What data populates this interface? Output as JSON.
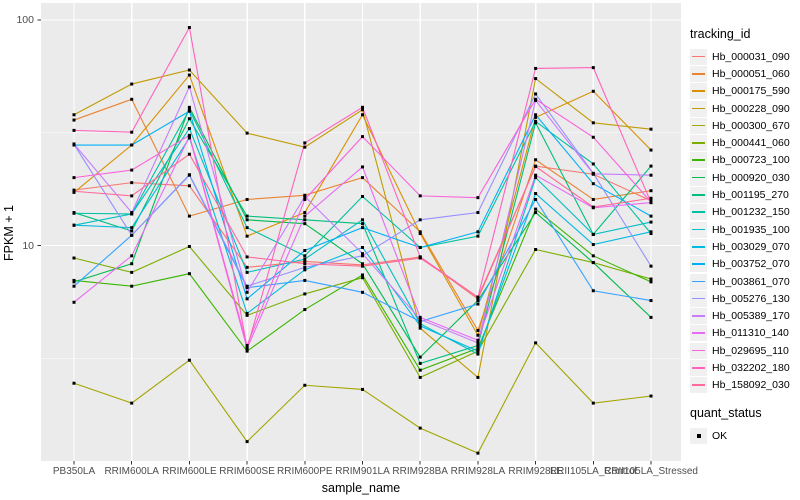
{
  "axes": {
    "x_label": "sample_name",
    "y_label": "FPKM + 1",
    "y_tick_labels": [
      "100",
      "10"
    ]
  },
  "legend": {
    "tracking_title": "tracking_id",
    "quant_title": "quant_status",
    "quant_items": [
      {
        "label": "OK",
        "marker": "black-square"
      }
    ]
  },
  "style": {
    "panel_bg": "#EBEBEB",
    "grid_color": "#FFFFFF",
    "marker_color": "#000000",
    "tick_text_color": "#4D4D4D",
    "tick_mark_color": "#333333"
  },
  "chart_data": {
    "type": "line",
    "x_type": "categorical",
    "title": "",
    "xlabel": "sample_name",
    "ylabel": "FPKM + 1",
    "y_scale": "log10",
    "ylim": [
      1.05,
      120
    ],
    "y_major_ticks": [
      100,
      10
    ],
    "y_major_gridlines": [
      10,
      100
    ],
    "y_minor_gridlines": [
      3.162,
      31.62
    ],
    "grid": true,
    "legend_position": "right",
    "point_marker": "black-square",
    "categories": [
      "PB350LA",
      "RRIM600LA",
      "RRIM600LE",
      "RRIM600SE",
      "RRIM600PE",
      "RRIM901LA",
      "RRIM928BA",
      "RRIM928LA",
      "RRIM928LE",
      "RRII105LA_Control",
      "RRII105LA_Stressed"
    ],
    "series": [
      {
        "name": "Hb_000031_090",
        "color": "#F8766D",
        "values": [
          17.6,
          19.0,
          18.4,
          8.0,
          8.5,
          8.2,
          8.9,
          5.8,
          22.5,
          20.7,
          15.8
        ]
      },
      {
        "name": "Hb_000051_060",
        "color": "#EA8331",
        "values": [
          36.0,
          44.5,
          13.5,
          16.0,
          16.7,
          20.0,
          11.5,
          4.2,
          24.0,
          16.0,
          17.5
        ]
      },
      {
        "name": "Hb_000175_590",
        "color": "#D89000",
        "values": [
          17.2,
          27.9,
          57.0,
          11.0,
          14.0,
          38.0,
          11.3,
          4.0,
          37.0,
          48.3,
          26.5
        ]
      },
      {
        "name": "Hb_000228_090",
        "color": "#C09B00",
        "values": [
          38.0,
          52.0,
          60.0,
          31.5,
          27.3,
          40.0,
          4.3,
          2.6,
          55.0,
          35.0,
          32.8
        ]
      },
      {
        "name": "Hb_000300_670",
        "color": "#A3A500",
        "values": [
          2.45,
          2.0,
          3.1,
          1.35,
          2.4,
          2.3,
          1.55,
          1.2,
          3.7,
          2.0,
          2.15
        ]
      },
      {
        "name": "Hb_000441_060",
        "color": "#7CAE00",
        "values": [
          8.8,
          7.6,
          9.9,
          4.9,
          6.1,
          7.2,
          2.6,
          3.4,
          9.6,
          8.4,
          7.1
        ]
      },
      {
        "name": "Hb_000723_100",
        "color": "#39B600",
        "values": [
          7.0,
          6.6,
          7.5,
          3.4,
          5.2,
          7.4,
          2.8,
          3.5,
          14.5,
          9.0,
          6.9
        ]
      },
      {
        "name": "Hb_000920_030",
        "color": "#00BB4E",
        "values": [
          6.9,
          8.3,
          41.0,
          13.0,
          12.5,
          8.3,
          3.2,
          5.7,
          14.0,
          8.4,
          4.8
        ]
      },
      {
        "name": "Hb_001195_270",
        "color": "#00BF7D",
        "values": [
          14.0,
          11.6,
          36.5,
          13.5,
          13.0,
          12.5,
          3.0,
          3.6,
          35.0,
          11.2,
          22.5
        ]
      },
      {
        "name": "Hb_001232_150",
        "color": "#00C1A3",
        "values": [
          13.9,
          13.8,
          40.0,
          12.0,
          9.0,
          16.5,
          9.8,
          11.0,
          35.5,
          23.0,
          11.3
        ]
      },
      {
        "name": "Hb_001935_100",
        "color": "#00BFC4",
        "values": [
          12.3,
          13.8,
          33.0,
          7.6,
          8.7,
          13.0,
          4.5,
          3.3,
          20.0,
          11.2,
          12.7
        ]
      },
      {
        "name": "Hb_003029_070",
        "color": "#00BAE0",
        "values": [
          12.3,
          12.0,
          30.0,
          5.0,
          7.8,
          9.8,
          4.4,
          3.4,
          17.0,
          10.1,
          11.5
        ]
      },
      {
        "name": "Hb_003752_070",
        "color": "#00B0F6",
        "values": [
          27.9,
          27.9,
          39.4,
          5.8,
          9.5,
          12.0,
          9.8,
          11.5,
          38.0,
          18.8,
          13.5
        ]
      },
      {
        "name": "Hb_003861_070",
        "color": "#35A2FF",
        "values": [
          6.6,
          11.1,
          20.5,
          6.5,
          7.0,
          6.2,
          4.6,
          5.5,
          16.0,
          6.3,
          5.7
        ]
      },
      {
        "name": "Hb_005276_130",
        "color": "#9590FF",
        "values": [
          28.1,
          11.1,
          20.6,
          6.6,
          8.0,
          9.0,
          13.0,
          14.0,
          47.0,
          20.9,
          8.1
        ]
      },
      {
        "name": "Hb_005389_170",
        "color": "#C77CFF",
        "values": [
          28.2,
          14.0,
          50.5,
          6.2,
          16.5,
          9.2,
          4.7,
          3.7,
          44.0,
          20.8,
          20.5
        ]
      },
      {
        "name": "Hb_011310_140",
        "color": "#E76BF3",
        "values": [
          5.6,
          9.0,
          30.5,
          3.5,
          13.5,
          22.3,
          4.8,
          3.8,
          20.5,
          14.7,
          15.5
        ]
      },
      {
        "name": "Hb_029695_110",
        "color": "#FA62DB",
        "values": [
          20.0,
          21.6,
          30.8,
          3.6,
          16.0,
          30.4,
          16.6,
          16.3,
          44.5,
          30.2,
          15.6
        ]
      },
      {
        "name": "Hb_032202_180",
        "color": "#FF62BC",
        "values": [
          32.4,
          31.8,
          92.6,
          3.5,
          28.5,
          41.0,
          8.9,
          5.9,
          61.0,
          61.5,
          15.5
        ]
      },
      {
        "name": "Hb_158092_030",
        "color": "#FF6A98",
        "values": [
          17.4,
          16.6,
          25.4,
          8.9,
          8.3,
          8.1,
          8.8,
          5.9,
          22.4,
          14.8,
          16.2
        ]
      }
    ]
  }
}
